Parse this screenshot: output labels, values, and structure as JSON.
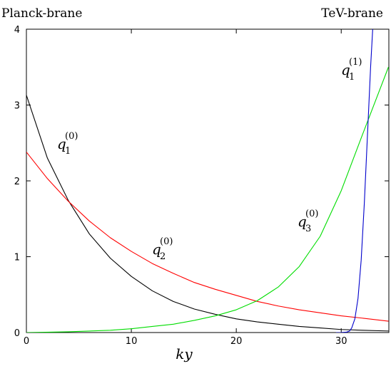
{
  "chart_data": {
    "type": "line",
    "corner_labels": {
      "left": "Planck-brane",
      "right": "TeV-brane"
    },
    "xlabel": "ky",
    "ylabel": "",
    "xlim": [
      0,
      34.54
    ],
    "ylim": [
      0,
      4
    ],
    "xticks": [
      0,
      10,
      20,
      30
    ],
    "yticks": [
      0,
      1,
      2,
      3,
      4
    ],
    "grid": false,
    "series": [
      {
        "label_base": "q",
        "label_sub": "1",
        "label_sup": "(0)",
        "color": "#000000",
        "x": [
          0,
          2,
          4,
          6,
          8,
          10,
          12,
          14,
          16,
          18,
          20,
          22,
          24,
          26,
          28,
          30,
          32,
          34.5
        ],
        "y": [
          3.13,
          2.3,
          1.74,
          1.3,
          0.98,
          0.74,
          0.55,
          0.41,
          0.31,
          0.24,
          0.18,
          0.14,
          0.11,
          0.08,
          0.06,
          0.04,
          0.03,
          0.02
        ]
      },
      {
        "label_base": "q",
        "label_sub": "2",
        "label_sup": "(0)",
        "color": "#ff0000",
        "x": [
          0,
          2,
          4,
          6,
          8,
          10,
          12,
          14,
          16,
          18,
          20,
          22,
          24,
          26,
          28,
          30,
          32,
          34.5
        ],
        "y": [
          2.38,
          2.03,
          1.73,
          1.47,
          1.25,
          1.07,
          0.91,
          0.78,
          0.66,
          0.57,
          0.49,
          0.41,
          0.35,
          0.3,
          0.26,
          0.22,
          0.19,
          0.15
        ]
      },
      {
        "label_base": "q",
        "label_sub": "3",
        "label_sup": "(0)",
        "color": "#00dd00",
        "x": [
          0,
          4,
          8,
          10,
          12,
          14,
          16,
          18,
          20,
          22,
          24,
          26,
          28,
          30,
          32,
          34.5
        ],
        "y": [
          0,
          0.01,
          0.03,
          0.05,
          0.08,
          0.11,
          0.16,
          0.22,
          0.3,
          0.42,
          0.6,
          0.87,
          1.27,
          1.87,
          2.6,
          3.5
        ]
      },
      {
        "label_base": "q",
        "label_sub": "1",
        "label_sup": "(1)",
        "color": "#0000cc",
        "x": [
          29.5,
          30.0,
          30.5,
          30.8,
          31.0,
          31.3,
          31.6,
          31.9,
          32.2,
          32.5,
          32.8,
          33.0
        ],
        "y": [
          0,
          0.001,
          0.005,
          0.02,
          0.06,
          0.18,
          0.45,
          0.95,
          1.7,
          2.6,
          3.5,
          4.0
        ]
      }
    ]
  }
}
